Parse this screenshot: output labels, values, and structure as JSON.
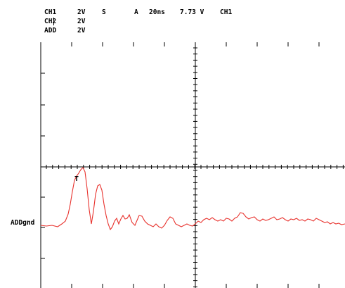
{
  "scope": {
    "row1": {
      "channel": "CH1",
      "volts_per_div": "2V",
      "coupling": "S",
      "trigger_mode": "A",
      "timebase": "20ns",
      "trigger_level": "7.73 V",
      "trigger_source": "CH1"
    },
    "row2": {
      "channel": "CH2",
      "volts_per_div": "2V"
    },
    "row3": {
      "channel": "ADD",
      "volts_per_div": "2V"
    },
    "ground_label": "ADDgnd",
    "trigger_marker": "T"
  },
  "colors": {
    "trace": "#e8322d",
    "grid": "#000000",
    "background": "#ffffff"
  }
}
